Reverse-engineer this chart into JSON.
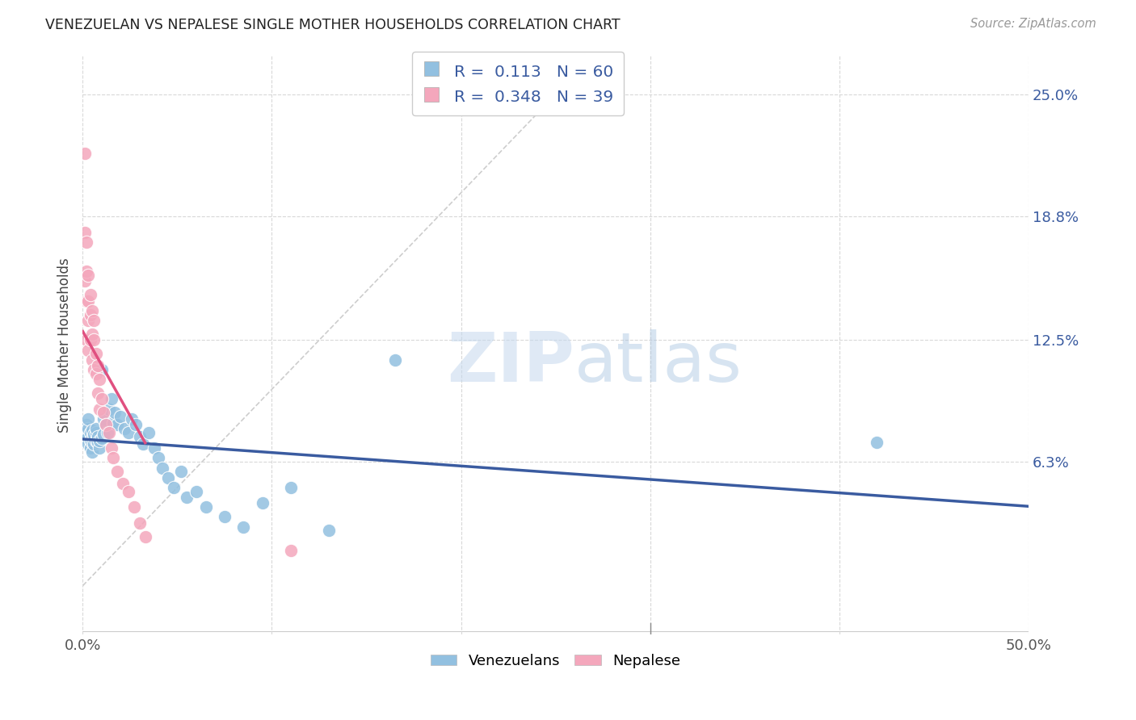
{
  "title": "VENEZUELAN VS NEPALESE SINGLE MOTHER HOUSEHOLDS CORRELATION CHART",
  "source": "Source: ZipAtlas.com",
  "ylabel": "Single Mother Households",
  "xlim": [
    0.0,
    0.5
  ],
  "ylim": [
    -0.025,
    0.27
  ],
  "ytick_positions": [
    0.063,
    0.125,
    0.188,
    0.25
  ],
  "ytick_labels": [
    "6.3%",
    "12.5%",
    "18.8%",
    "25.0%"
  ],
  "venezuelan_color": "#92C0E0",
  "nepalese_color": "#F4A7BC",
  "trend_venezuelan_color": "#3A5BA0",
  "trend_nepalese_color": "#E05080",
  "trend_diagonal_color": "#c8c8c8",
  "R_venezuelan": 0.113,
  "N_venezuelan": 60,
  "R_nepalese": 0.348,
  "N_nepalese": 39,
  "venezuelan_x": [
    0.001,
    0.002,
    0.002,
    0.002,
    0.003,
    0.003,
    0.003,
    0.003,
    0.004,
    0.004,
    0.004,
    0.005,
    0.005,
    0.005,
    0.005,
    0.006,
    0.006,
    0.006,
    0.007,
    0.007,
    0.007,
    0.008,
    0.008,
    0.009,
    0.009,
    0.01,
    0.01,
    0.011,
    0.011,
    0.012,
    0.013,
    0.014,
    0.015,
    0.016,
    0.017,
    0.018,
    0.02,
    0.022,
    0.024,
    0.026,
    0.028,
    0.03,
    0.032,
    0.035,
    0.038,
    0.04,
    0.042,
    0.045,
    0.048,
    0.052,
    0.055,
    0.06,
    0.065,
    0.075,
    0.085,
    0.095,
    0.11,
    0.13,
    0.165,
    0.42
  ],
  "venezuelan_y": [
    0.08,
    0.075,
    0.082,
    0.078,
    0.076,
    0.08,
    0.072,
    0.085,
    0.074,
    0.078,
    0.07,
    0.075,
    0.073,
    0.079,
    0.068,
    0.075,
    0.072,
    0.077,
    0.074,
    0.078,
    0.08,
    0.073,
    0.076,
    0.07,
    0.074,
    0.075,
    0.11,
    0.085,
    0.077,
    0.082,
    0.078,
    0.09,
    0.095,
    0.083,
    0.088,
    0.082,
    0.086,
    0.08,
    0.078,
    0.085,
    0.082,
    0.076,
    0.072,
    0.078,
    0.07,
    0.065,
    0.06,
    0.055,
    0.05,
    0.058,
    0.045,
    0.048,
    0.04,
    0.035,
    0.03,
    0.042,
    0.05,
    0.028,
    0.115,
    0.073
  ],
  "nepalese_x": [
    0.001,
    0.001,
    0.001,
    0.002,
    0.002,
    0.002,
    0.002,
    0.003,
    0.003,
    0.003,
    0.003,
    0.004,
    0.004,
    0.004,
    0.005,
    0.005,
    0.005,
    0.006,
    0.006,
    0.006,
    0.007,
    0.007,
    0.008,
    0.008,
    0.009,
    0.009,
    0.01,
    0.011,
    0.012,
    0.014,
    0.015,
    0.016,
    0.018,
    0.021,
    0.024,
    0.027,
    0.03,
    0.033,
    0.11
  ],
  "nepalese_y": [
    0.22,
    0.18,
    0.155,
    0.175,
    0.16,
    0.145,
    0.125,
    0.158,
    0.145,
    0.135,
    0.12,
    0.148,
    0.138,
    0.125,
    0.14,
    0.128,
    0.115,
    0.135,
    0.125,
    0.11,
    0.118,
    0.108,
    0.112,
    0.098,
    0.105,
    0.09,
    0.095,
    0.088,
    0.082,
    0.078,
    0.07,
    0.065,
    0.058,
    0.052,
    0.048,
    0.04,
    0.032,
    0.025,
    0.018
  ],
  "watermark_zip": "ZIP",
  "watermark_atlas": "atlas",
  "background_color": "#ffffff",
  "grid_color": "#d8d8d8",
  "venezuelan_trend_start_x": 0.0,
  "venezuelan_trend_end_x": 0.5,
  "nepalese_trend_start_x": 0.0,
  "nepalese_trend_end_x": 0.033
}
